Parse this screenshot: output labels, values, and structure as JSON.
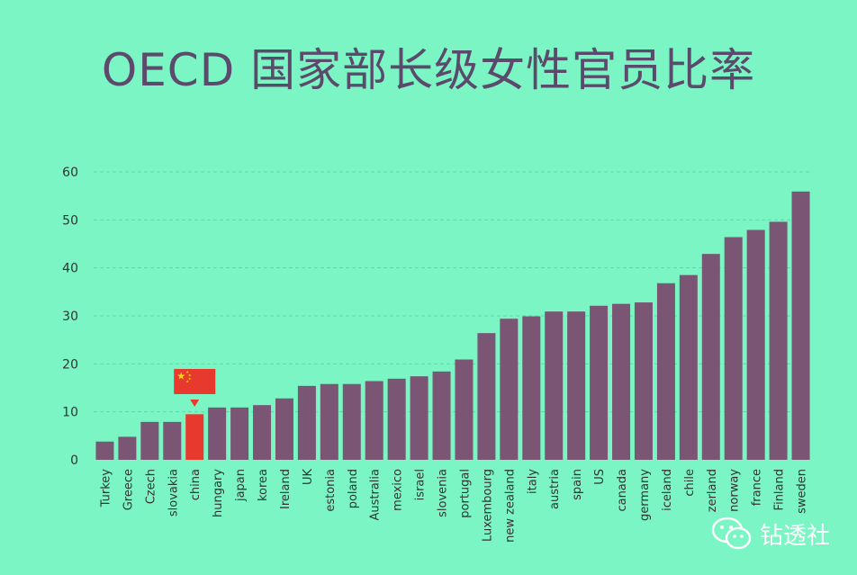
{
  "title": "OECD 国家部长级女性官员比率",
  "watermark": "钻透社",
  "colors": {
    "background": "#7af5c3",
    "bar": "#7a5574",
    "highlight": "#e8392f",
    "flag": "#e8392f",
    "flag_star": "#ffde00",
    "gridline": "#5fd9a8",
    "axis_text": "#333333",
    "title": "#5b4a6b"
  },
  "chart_data": {
    "type": "bar",
    "title": "OECD 国家部长级女性官员比率",
    "xlabel": "",
    "ylabel": "",
    "ylim": [
      0,
      60
    ],
    "yticks": [
      0,
      10,
      20,
      30,
      40,
      50,
      60
    ],
    "grid": true,
    "highlight_category": "china",
    "categories": [
      "Turkey",
      "Greece",
      "Czech",
      "slovakia",
      "china",
      "hungary",
      "japan",
      "korea",
      "Ireland",
      "UK",
      "estonia",
      "poland",
      "Australia",
      "mexico",
      "israel",
      "slovenia",
      "portugal",
      "Luxembourg",
      "new zealand",
      "italy",
      "austria",
      "spain",
      "US",
      "canada",
      "germany",
      "iceland",
      "chile",
      "zerland",
      "norway",
      "france",
      "Finland",
      "sweden"
    ],
    "values": [
      3.8,
      4.8,
      7.9,
      7.9,
      9.5,
      10.9,
      10.9,
      11.4,
      12.8,
      15.4,
      15.8,
      15.8,
      16.4,
      16.9,
      17.4,
      18.4,
      20.9,
      26.4,
      29.4,
      29.9,
      30.9,
      30.9,
      32.1,
      32.5,
      32.8,
      36.8,
      38.5,
      42.9,
      46.4,
      47.9,
      49.6,
      55.9
    ]
  }
}
